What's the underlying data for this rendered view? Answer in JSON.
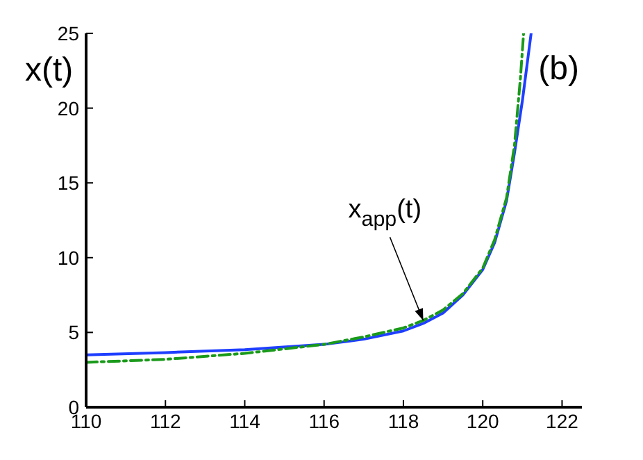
{
  "chart_data": {
    "type": "line",
    "ylabel": "x(t)",
    "xlim": [
      110,
      122.5
    ],
    "xticks": [
      110,
      112,
      114,
      116,
      118,
      120,
      122
    ],
    "ylim": [
      0,
      25
    ],
    "yticks": [
      0,
      5,
      10,
      15,
      20,
      25
    ],
    "grid": false,
    "legend": false,
    "marker": "none",
    "annotations": [
      "(b)",
      {
        "text": "x$_{app}$(t)",
        "x": 118.5,
        "y": 5.8
      }
    ],
    "series": [
      {
        "color": "#1f3fff",
        "line_style": "solid",
        "x": [
          110,
          112,
          114,
          116,
          117,
          118,
          118.5,
          119,
          119.5,
          120,
          120.3,
          120.6,
          120.8,
          121,
          121.22
        ],
        "values": [
          3.5,
          3.65,
          3.85,
          4.2,
          4.55,
          5.1,
          5.6,
          6.3,
          7.5,
          9.2,
          11,
          13.8,
          17,
          20.5,
          25
        ]
      },
      {
        "color": "#1a9a1a",
        "line_style": "dashed",
        "x": [
          110,
          112,
          114,
          116,
          117,
          118,
          118.5,
          119,
          119.5,
          120,
          120.3,
          120.6,
          120.8,
          120.95,
          121.03
        ],
        "values": [
          3.0,
          3.2,
          3.6,
          4.2,
          4.7,
          5.3,
          5.8,
          6.5,
          7.6,
          9.3,
          11.2,
          14,
          17.5,
          22,
          25
        ]
      }
    ]
  }
}
